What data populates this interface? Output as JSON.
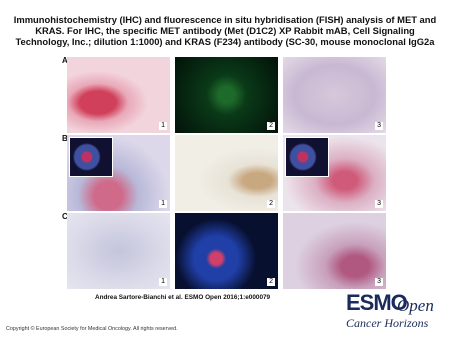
{
  "header": {
    "title": "Immunohistochemistry (IHC) and fluorescence in situ hybridisation (FISH) analysis of MET and KRAS. For IHC, the specific MET antibody (Met (D1C2) XP Rabbit mAB, Cell Signaling Technology, Inc.; dilution 1:1000) and KRAS (F234) antibody (SC-30, mouse monoclonal IgG2a"
  },
  "figure": {
    "panels": [
      {
        "label": "A",
        "images": [
          "1",
          "2",
          "3"
        ]
      },
      {
        "label": "B",
        "images": [
          "1",
          "2",
          "3"
        ]
      },
      {
        "label": "C",
        "images": [
          "1",
          "2",
          "3"
        ]
      }
    ]
  },
  "citation": "Andrea Sartore-Bianchi et al. ESMO Open 2016;1:e000079",
  "logo": {
    "brand": "ESMO",
    "suffix": "Open",
    "tagline": "Cancer Horizons"
  },
  "footer": {
    "copyright": "Copyright © European Society for Medical Oncology. All rights reserved."
  }
}
